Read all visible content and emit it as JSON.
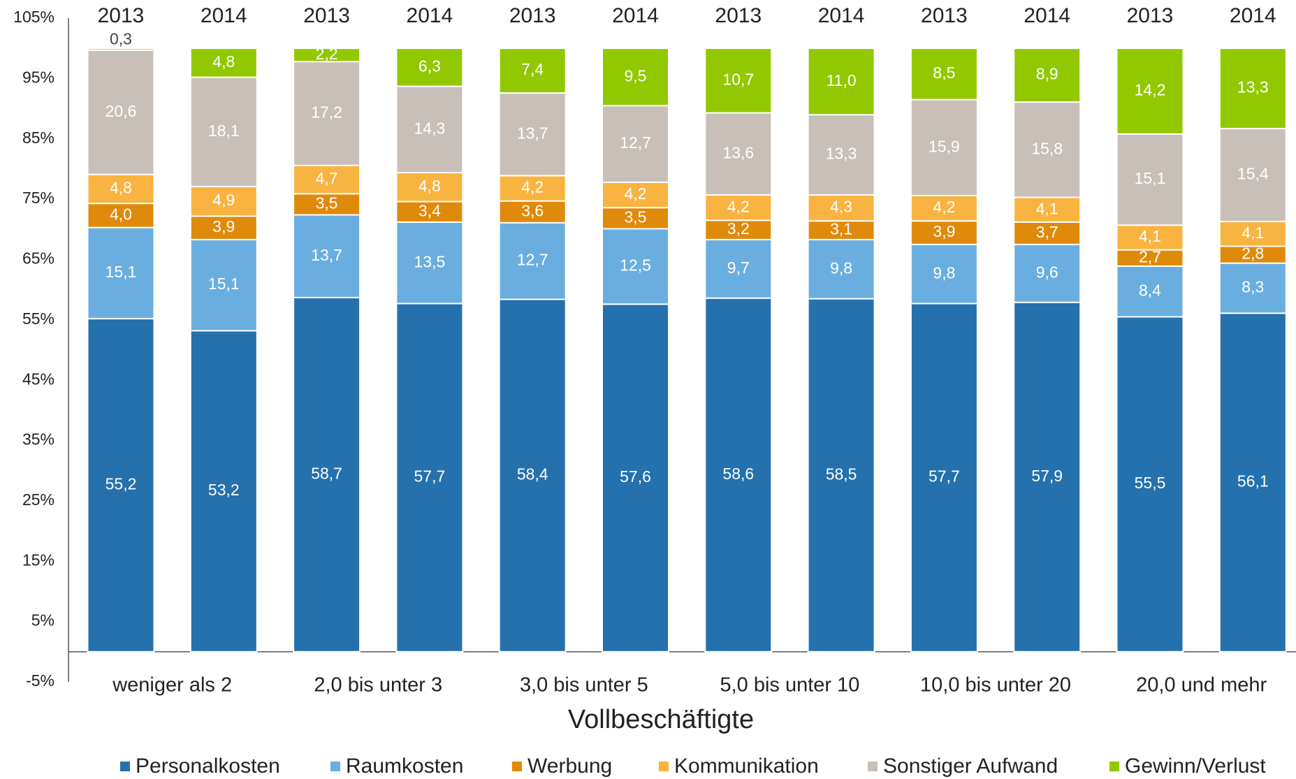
{
  "chart_data": {
    "type": "stacked_bar",
    "categories": [
      "2013",
      "2014",
      "2013",
      "2014",
      "2013",
      "2014",
      "2013",
      "2014",
      "2013",
      "2014",
      "2013",
      "2014"
    ],
    "groups": [
      "weniger als 2",
      "2,0 bis unter 3",
      "3,0 bis unter 5",
      "5,0 bis unter 10",
      "10,0 bis unter 20",
      "20,0 und mehr"
    ],
    "x_label": "Vollbeschäftigte",
    "ylim": [
      -5,
      105
    ],
    "yticks": [
      {
        "value": -5,
        "label": "-5%"
      },
      {
        "value": 5,
        "label": "5%"
      },
      {
        "value": 15,
        "label": "15%"
      },
      {
        "value": 25,
        "label": "25%"
      },
      {
        "value": 35,
        "label": "35%"
      },
      {
        "value": 45,
        "label": "45%"
      },
      {
        "value": 55,
        "label": "55%"
      },
      {
        "value": 65,
        "label": "65%"
      },
      {
        "value": 75,
        "label": "75%"
      },
      {
        "value": 85,
        "label": "85%"
      },
      {
        "value": 95,
        "label": "95%"
      },
      {
        "value": 105,
        "label": "105%"
      }
    ],
    "grid": false,
    "legend": "bottom",
    "series": [
      {
        "name": "Personalkosten",
        "color": "#2471ad",
        "values": [
          55.2,
          53.2,
          58.7,
          57.7,
          58.4,
          57.6,
          58.6,
          58.5,
          57.7,
          57.9,
          55.5,
          56.1
        ],
        "value_labels": [
          "55,2",
          "53,2",
          "58,7",
          "57,7",
          "58,4",
          "57,6",
          "58,6",
          "58,5",
          "57,7",
          "57,9",
          "55,5",
          "56,1"
        ]
      },
      {
        "name": "Raumkosten",
        "color": "#6aaee0",
        "values": [
          15.1,
          15.1,
          13.7,
          13.5,
          12.7,
          12.5,
          9.7,
          9.8,
          9.8,
          9.6,
          8.4,
          8.3
        ],
        "value_labels": [
          "15,1",
          "15,1",
          "13,7",
          "13,5",
          "12,7",
          "12,5",
          "9,7",
          "9,8",
          "9,8",
          "9,6",
          "8,4",
          "8,3"
        ]
      },
      {
        "name": "Werbung",
        "color": "#e08a0b",
        "values": [
          4.0,
          3.9,
          3.5,
          3.4,
          3.6,
          3.5,
          3.2,
          3.1,
          3.9,
          3.7,
          2.7,
          2.8
        ],
        "value_labels": [
          "4,0",
          "3,9",
          "3,5",
          "3,4",
          "3,6",
          "3,5",
          "3,2",
          "3,1",
          "3,9",
          "3,7",
          "2,7",
          "2,8"
        ]
      },
      {
        "name": "Kommunikation",
        "color": "#f9b340",
        "values": [
          4.8,
          4.9,
          4.7,
          4.8,
          4.2,
          4.2,
          4.2,
          4.3,
          4.2,
          4.1,
          4.1,
          4.1
        ],
        "value_labels": [
          "4,8",
          "4,9",
          "4,7",
          "4,8",
          "4,2",
          "4,2",
          "4,2",
          "4,3",
          "4,2",
          "4,1",
          "4,1",
          "4,1"
        ]
      },
      {
        "name": "Sonstiger Aufwand",
        "color": "#c8c0b8",
        "values": [
          20.6,
          18.1,
          17.2,
          14.3,
          13.7,
          12.7,
          13.6,
          13.3,
          15.9,
          15.8,
          15.1,
          15.4
        ],
        "value_labels": [
          "20,6",
          "18,1",
          "17,2",
          "14,3",
          "13,7",
          "12,7",
          "13,6",
          "13,3",
          "15,9",
          "15,8",
          "15,1",
          "15,4"
        ]
      },
      {
        "name": "Gewinn/Verlust",
        "color": "#92c800",
        "values": [
          0.3,
          4.8,
          2.2,
          6.3,
          7.4,
          9.5,
          10.7,
          11.0,
          8.5,
          8.9,
          14.2,
          13.3
        ],
        "value_labels": [
          "0,3",
          "4,8",
          "2,2",
          "6,3",
          "7,4",
          "9,5",
          "10,7",
          "11,0",
          "8,5",
          "8,9",
          "14,2",
          "13,3"
        ]
      }
    ]
  }
}
